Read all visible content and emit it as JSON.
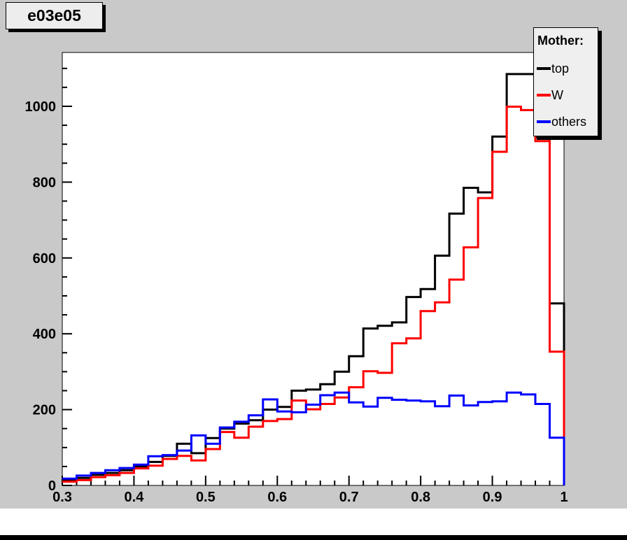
{
  "title_box": {
    "text": "e03e05"
  },
  "legend": {
    "title": "Mother:",
    "items": [
      {
        "label": "top",
        "color": "#000000"
      },
      {
        "label": "W",
        "color": "#ff0000"
      },
      {
        "label": "others",
        "color": "#0000ff"
      }
    ]
  },
  "colors": {
    "canvas_background": "#c9c9c9",
    "plot_background": "#ffffff",
    "frame_border": "#000000",
    "series_top": "#000000",
    "series_W": "#ff0000",
    "series_others": "#0000ff"
  },
  "chart_data": {
    "type": "step_histogram",
    "title": "e03e05",
    "xlabel": "",
    "ylabel": "",
    "xlim": [
      0.3,
      1.0
    ],
    "ylim": [
      0,
      1142
    ],
    "x_tick_values": [
      0.3,
      0.4,
      0.5,
      0.6,
      0.7,
      0.8,
      0.9,
      1.0
    ],
    "x_tick_labels": [
      "0.3",
      "0.4",
      "0.5",
      "0.6",
      "0.7",
      "0.8",
      "0.9",
      "1"
    ],
    "x_minor_step": 0.02,
    "y_tick_values": [
      0,
      200,
      400,
      600,
      800,
      1000
    ],
    "y_tick_labels": [
      "0",
      "200",
      "400",
      "600",
      "800",
      "1000"
    ],
    "y_minor_step": 50,
    "grid": false,
    "legend_position": "top-right",
    "x_start": 0.3,
    "bin_width": 0.02,
    "series": [
      {
        "name": "top",
        "color": "#000000",
        "values": [
          14,
          20,
          28,
          33,
          40,
          50,
          62,
          78,
          110,
          85,
          125,
          150,
          163,
          172,
          200,
          207,
          250,
          253,
          267,
          300,
          341,
          414,
          421,
          430,
          497,
          518,
          606,
          717,
          785,
          773,
          920,
          1085,
          1085,
          918,
          480
        ]
      },
      {
        "name": "W",
        "color": "#ff0000",
        "values": [
          10,
          14,
          22,
          27,
          33,
          45,
          52,
          70,
          78,
          66,
          96,
          141,
          126,
          155,
          170,
          175,
          224,
          201,
          215,
          232,
          259,
          301,
          297,
          375,
          388,
          460,
          483,
          543,
          628,
          758,
          880,
          999,
          990,
          908,
          353
        ]
      },
      {
        "name": "others",
        "color": "#0000ff",
        "values": [
          18,
          26,
          33,
          40,
          46,
          55,
          77,
          80,
          92,
          132,
          110,
          153,
          168,
          185,
          227,
          195,
          193,
          213,
          238,
          245,
          219,
          208,
          231,
          226,
          224,
          222,
          209,
          237,
          211,
          220,
          222,
          245,
          240,
          215,
          126
        ]
      }
    ]
  }
}
